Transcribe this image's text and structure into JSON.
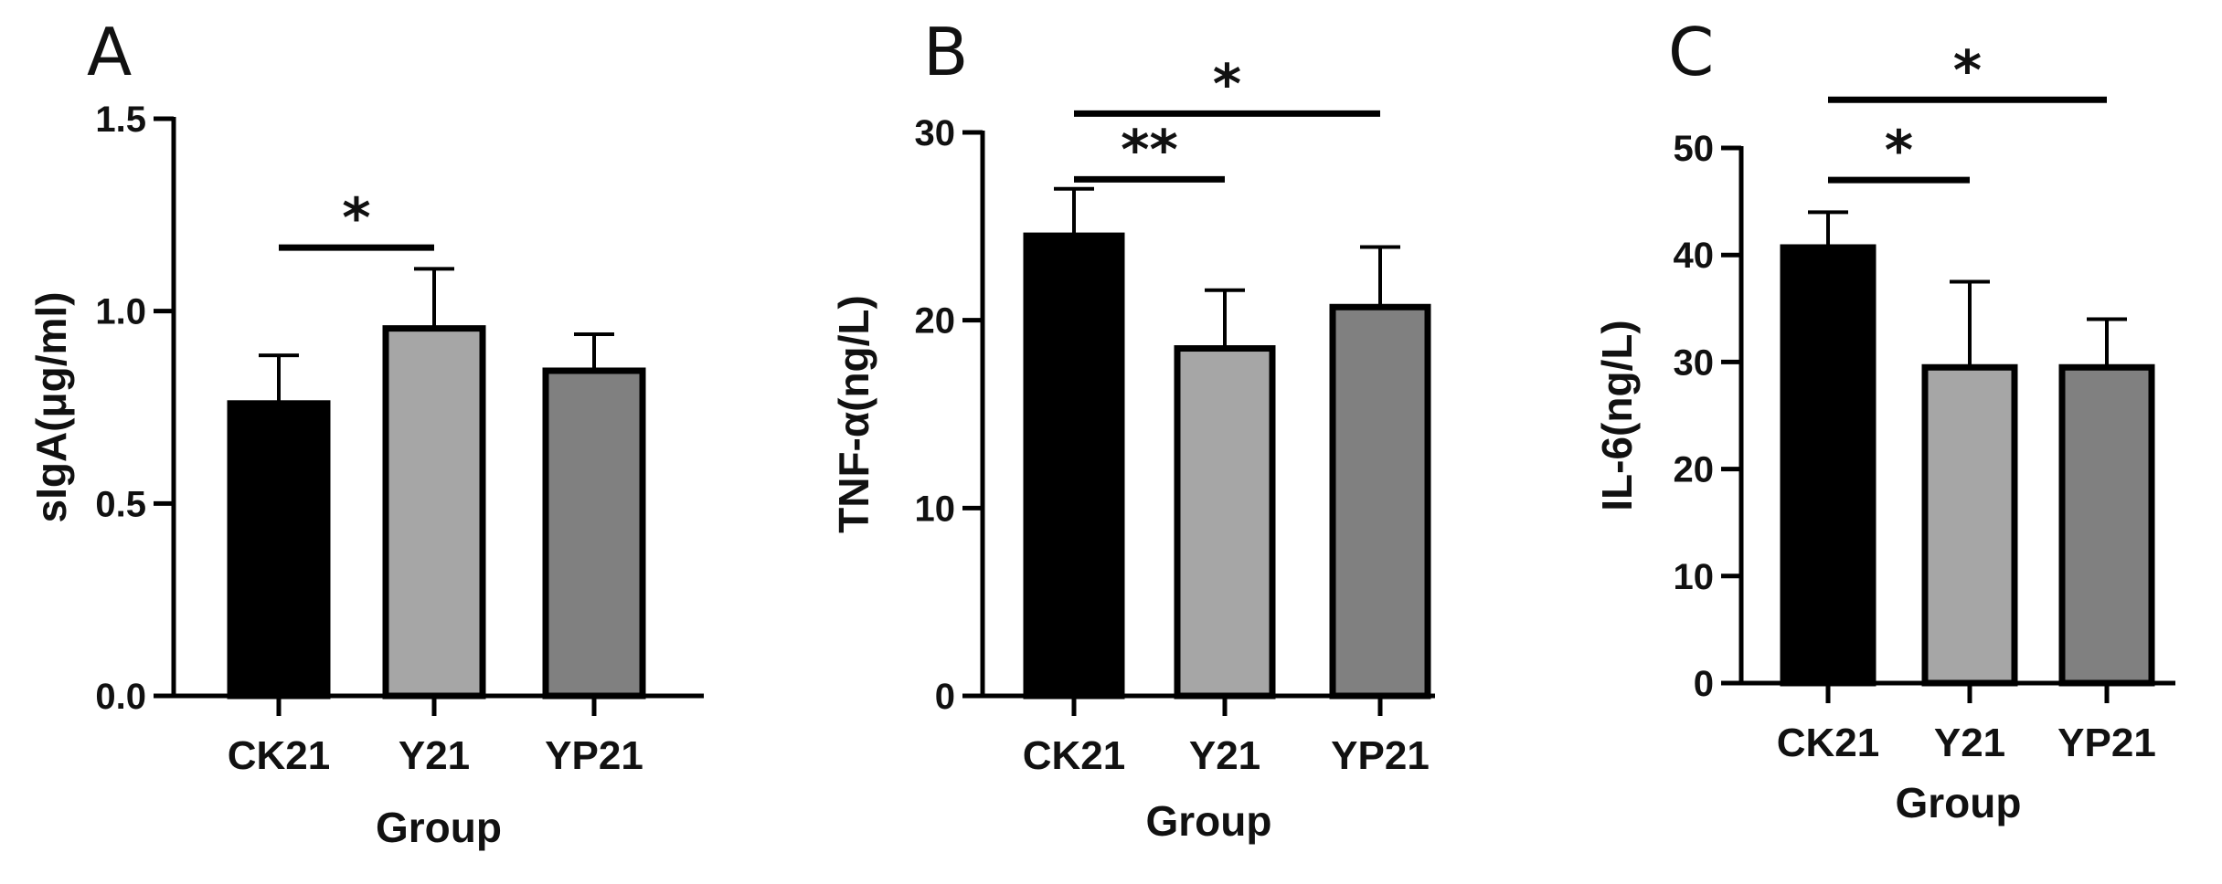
{
  "chart_data": [
    {
      "type": "bar",
      "panel_label": "A",
      "categories": [
        "CK21",
        "Y21",
        "YP21"
      ],
      "values": [
        0.76,
        0.955,
        0.845
      ],
      "errors": [
        0.125,
        0.155,
        0.095
      ],
      "bar_colors": [
        "#000000",
        "#a6a6a6",
        "#808080"
      ],
      "ylim": [
        0,
        1.5
      ],
      "yticks": [
        0.0,
        0.5,
        1.0,
        1.5
      ],
      "ytick_labels": [
        "0.0",
        "0.5",
        "1.0",
        "1.5"
      ],
      "xlabel": "Group",
      "ylabel": "sIgA(μg/ml)",
      "significance": [
        {
          "from": "CK21",
          "to": "Y21",
          "label": "*",
          "y": 1.165
        }
      ]
    },
    {
      "type": "bar",
      "panel_label": "B",
      "categories": [
        "CK21",
        "Y21",
        "YP21"
      ],
      "values": [
        24.5,
        18.5,
        20.7
      ],
      "errors": [
        2.5,
        3.1,
        3.2
      ],
      "bar_colors": [
        "#000000",
        "#a6a6a6",
        "#808080"
      ],
      "ylim": [
        0,
        30
      ],
      "yticks": [
        0,
        10,
        20,
        30
      ],
      "ytick_labels": [
        "0",
        "10",
        "20",
        "30"
      ],
      "xlabel": "Group",
      "ylabel": "TNF-α(ng/L)",
      "significance": [
        {
          "from": "CK21",
          "to": "Y21",
          "label": "**",
          "y": 27.5
        },
        {
          "from": "CK21",
          "to": "YP21",
          "label": "*",
          "y": 31.0
        }
      ]
    },
    {
      "type": "bar",
      "panel_label": "C",
      "categories": [
        "CK21",
        "Y21",
        "YP21"
      ],
      "values": [
        40.7,
        29.5,
        29.5
      ],
      "errors": [
        3.3,
        8.0,
        4.5
      ],
      "bar_colors": [
        "#000000",
        "#a6a6a6",
        "#808080"
      ],
      "ylim": [
        0,
        50
      ],
      "yticks": [
        0,
        10,
        20,
        30,
        40,
        50
      ],
      "ytick_labels": [
        "0",
        "10",
        "20",
        "30",
        "40",
        "50"
      ],
      "xlabel": "Group",
      "ylabel": "IL-6(ng/L)",
      "significance": [
        {
          "from": "CK21",
          "to": "Y21",
          "label": "*",
          "y": 47.0
        },
        {
          "from": "CK21",
          "to": "YP21",
          "label": "*",
          "y": 54.5
        }
      ]
    }
  ]
}
